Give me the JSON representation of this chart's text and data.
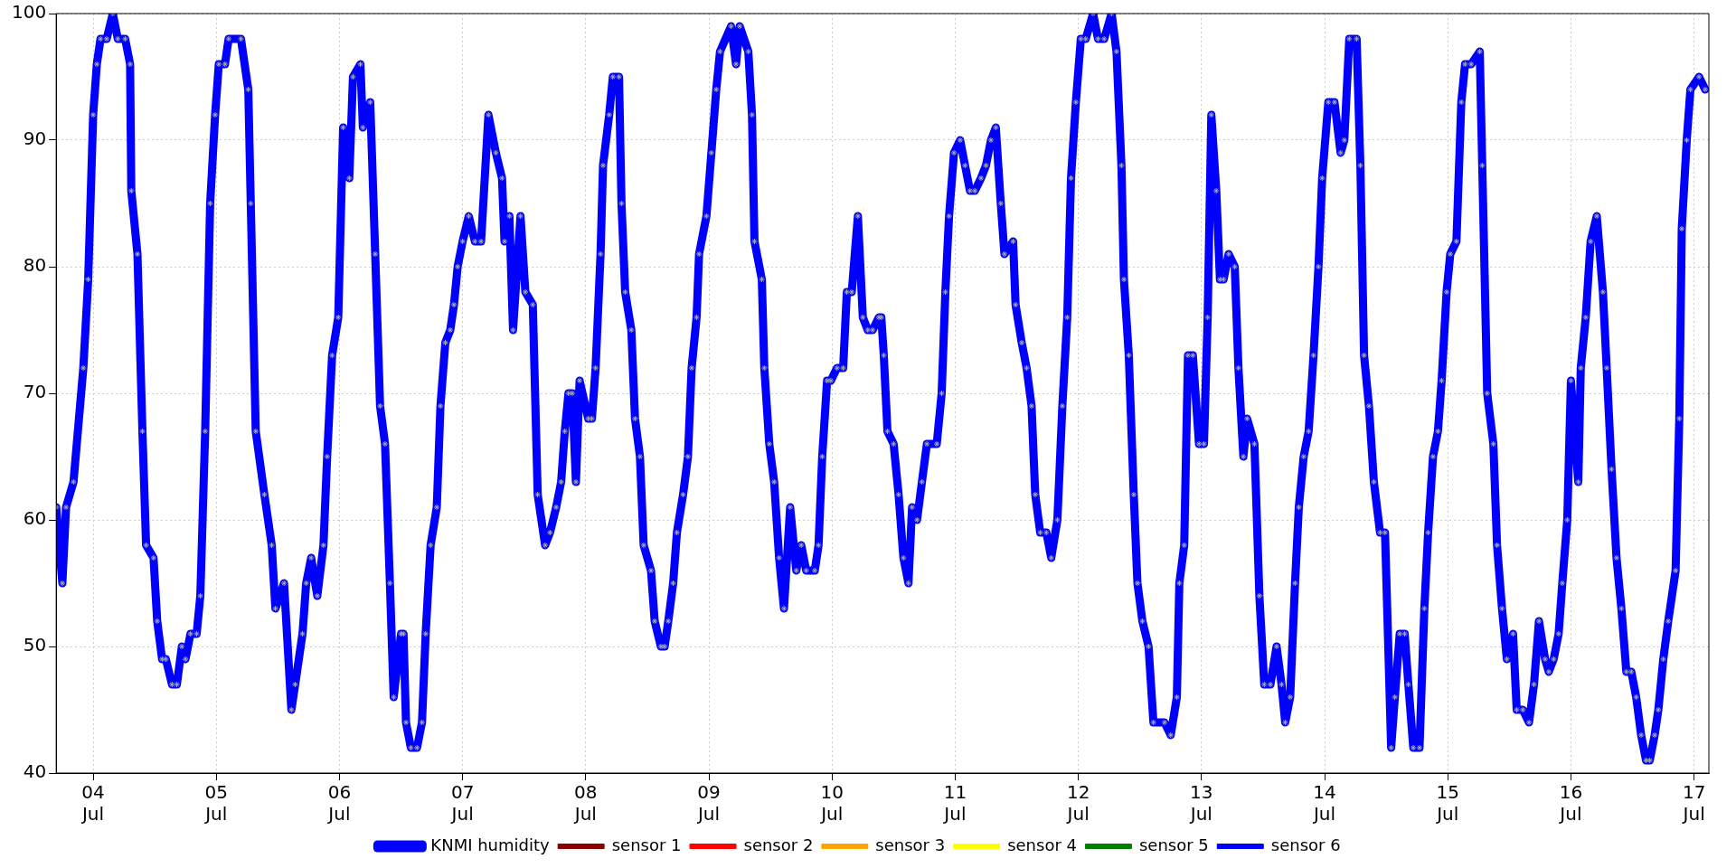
{
  "chart_data": {
    "type": "line",
    "xlim": [
      "--07-03T16:48",
      "--07-17T02:53"
    ],
    "ylim": [
      40,
      100
    ],
    "xticks": [
      {
        "value": "--07-04",
        "label": "04\nJul"
      },
      {
        "value": "--07-05",
        "label": "05\nJul"
      },
      {
        "value": "--07-06",
        "label": "06\nJul"
      },
      {
        "value": "--07-07",
        "label": "07\nJul"
      },
      {
        "value": "--07-08",
        "label": "08\nJul"
      },
      {
        "value": "--07-09",
        "label": "09\nJul"
      },
      {
        "value": "--07-10",
        "label": "10\nJul"
      },
      {
        "value": "--07-11",
        "label": "11\nJul"
      },
      {
        "value": "--07-12",
        "label": "12\nJul"
      },
      {
        "value": "--07-13",
        "label": "13\nJul"
      },
      {
        "value": "--07-14",
        "label": "14\nJul"
      },
      {
        "value": "--07-15",
        "label": "15\nJul"
      },
      {
        "value": "--07-16",
        "label": "16\nJul"
      },
      {
        "value": "--07-17",
        "label": "17\nJul"
      }
    ],
    "yticks": [
      40,
      50,
      60,
      70,
      80,
      90,
      100
    ],
    "grid": true,
    "legend": "bottom",
    "marker": "cross",
    "line_style": "solid",
    "series": [
      {
        "name": "KNMI humidity",
        "color": "#0000ff",
        "x": [
          "--07-03T16:48",
          "--07-03T18:00",
          "--07-03T18:43",
          "--07-03T20:10",
          "--07-03T22:05",
          "--07-03T23:02",
          "--07-04T00:00",
          "--07-04T00:43",
          "--07-04T01:26",
          "--07-04T02:38",
          "--07-04T03:50",
          "--07-04T04:48",
          "--07-04T06:14",
          "--07-04T07:12",
          "--07-04T07:26",
          "--07-04T08:38",
          "--07-04T09:36",
          "--07-04T10:19",
          "--07-04T11:46",
          "--07-04T12:29",
          "--07-04T13:26",
          "--07-04T14:10",
          "--07-04T15:22",
          "--07-04T16:19",
          "--07-04T17:17",
          "--07-04T18:00",
          "--07-04T18:58",
          "--07-04T20:10",
          "--07-04T20:53",
          "--07-04T21:50",
          "--07-04T22:48",
          "--07-04T23:46",
          "--07-05T00:29",
          "--07-05T01:41",
          "--07-05T02:24",
          "--07-05T04:48",
          "--07-05T06:14",
          "--07-05T06:43",
          "--07-05T07:41",
          "--07-05T09:22",
          "--07-05T10:48",
          "--07-05T11:31",
          "--07-05T13:12",
          "--07-05T14:38",
          "--07-05T15:22",
          "--07-05T16:48",
          "--07-05T17:31",
          "--07-05T18:29",
          "--07-05T19:41",
          "--07-05T20:53",
          "--07-05T21:36",
          "--07-05T22:34",
          "--07-05T23:46",
          "--07-06T00:43",
          "--07-06T01:55",
          "--07-06T02:38",
          "--07-06T04:05",
          "--07-06T04:34",
          "--07-06T06:00",
          "--07-06T06:58",
          "--07-06T07:55",
          "--07-06T08:53",
          "--07-06T09:50",
          "--07-06T10:34",
          "--07-06T12:00",
          "--07-06T12:29",
          "--07-06T12:58",
          "--07-06T13:55",
          "--07-06T15:07",
          "--07-06T16:05",
          "--07-06T16:48",
          "--07-06T17:46",
          "--07-06T18:58",
          "--07-06T19:41",
          "--07-06T20:38",
          "--07-06T21:36",
          "--07-06T22:19",
          "--07-06T23:02",
          "--07-07T00:00",
          "--07-07T01:12",
          "--07-07T02:24",
          "--07-07T03:36",
          "--07-07T05:02",
          "--07-07T06:29",
          "--07-07T07:41",
          "--07-07T08:10",
          "--07-07T09:07",
          "--07-07T09:50",
          "--07-07T11:17",
          "--07-07T12:14",
          "--07-07T13:41",
          "--07-07T14:38",
          "--07-07T16:05",
          "--07-07T17:02",
          "--07-07T18:14",
          "--07-07T19:12",
          "--07-07T19:55",
          "--07-07T20:38",
          "--07-07T21:22",
          "--07-07T22:05",
          "--07-07T22:48",
          "--07-08T00:29",
          "--07-08T01:12",
          "--07-08T01:55",
          "--07-08T02:53",
          "--07-08T03:22",
          "--07-08T04:34",
          "--07-08T05:17",
          "--07-08T06:29",
          "--07-08T06:58",
          "--07-08T07:41",
          "--07-08T08:53",
          "--07-08T09:36",
          "--07-08T10:34",
          "--07-08T11:17",
          "--07-08T12:43",
          "--07-08T13:26",
          "--07-08T14:38",
          "--07-08T15:22",
          "--07-08T16:05",
          "--07-08T17:02",
          "--07-08T17:46",
          "--07-08T18:58",
          "--07-08T19:55",
          "--07-08T20:38",
          "--07-08T21:36",
          "--07-08T22:05",
          "--07-08T23:31",
          "--07-09T00:29",
          "--07-09T01:26",
          "--07-09T02:10",
          "--07-09T04:19",
          "--07-09T05:17",
          "--07-09T06:00",
          "--07-09T07:41",
          "--07-09T08:24",
          "--07-09T08:53",
          "--07-09T10:19",
          "--07-09T10:48",
          "--07-09T11:46",
          "--07-09T12:43",
          "--07-09T13:41",
          "--07-09T14:38",
          "--07-09T15:50",
          "--07-09T17:02",
          "--07-09T18:00",
          "--07-09T18:58",
          "--07-09T20:38",
          "--07-09T21:22",
          "--07-09T22:05",
          "--07-09T23:02",
          "--07-09T23:46",
          "--07-10T00:58",
          "--07-10T02:10",
          "--07-10T02:53",
          "--07-10T03:50",
          "--07-10T05:02",
          "--07-10T06:00",
          "--07-10T06:58",
          "--07-10T07:55",
          "--07-10T09:07",
          "--07-10T09:36",
          "--07-10T10:05",
          "--07-10T10:48",
          "--07-10T12:00",
          "--07-10T12:58",
          "--07-10T13:55",
          "--07-10T14:53",
          "--07-10T15:36",
          "--07-10T16:34",
          "--07-10T17:31",
          "--07-10T18:29",
          "--07-10T20:24",
          "--07-10T21:22",
          "--07-10T22:05",
          "--07-10T22:48",
          "--07-10T23:46",
          "--07-11T00:58",
          "--07-11T01:55",
          "--07-11T02:53",
          "--07-11T03:50",
          "--07-11T05:02",
          "--07-11T06:00",
          "--07-11T06:58",
          "--07-11T07:55",
          "--07-11T08:53",
          "--07-11T09:36",
          "--07-11T11:17",
          "--07-11T11:46",
          "--07-11T12:58",
          "--07-11T13:55",
          "--07-11T14:53",
          "--07-11T15:36",
          "--07-11T16:34",
          "--07-11T17:46",
          "--07-11T18:43",
          "--07-11T19:55",
          "--07-11T20:53",
          "--07-11T21:50",
          "--07-11T22:34",
          "--07-11T23:31",
          "--07-12T00:29",
          "--07-12T01:26",
          "--07-12T02:53",
          "--07-12T03:50",
          "--07-12T05:02",
          "--07-12T06:29",
          "--07-12T07:26",
          "--07-12T08:24",
          "--07-12T08:53",
          "--07-12T09:50",
          "--07-12T10:48",
          "--07-12T11:31",
          "--07-12T12:29",
          "--07-12T13:41",
          "--07-12T14:38",
          "--07-12T16:48",
          "--07-12T18:00",
          "--07-12T19:12",
          "--07-12T19:41",
          "--07-12T20:38",
          "--07-12T21:22",
          "--07-12T22:19",
          "--07-12T23:31",
          "--07-13T00:29",
          "--07-13T01:12",
          "--07-13T01:55",
          "--07-13T02:53",
          "--07-13T03:36",
          "--07-13T04:19",
          "--07-13T05:17",
          "--07-13T06:29",
          "--07-13T07:12",
          "--07-13T08:10",
          "--07-13T08:53",
          "--07-13T10:19",
          "--07-13T11:17",
          "--07-13T12:14",
          "--07-13T13:26",
          "--07-13T14:38",
          "--07-13T15:36",
          "--07-13T16:19",
          "--07-13T17:17",
          "--07-13T18:14",
          "--07-13T18:58",
          "--07-13T19:55",
          "--07-13T20:53",
          "--07-13T21:50",
          "--07-13T22:48",
          "--07-13T23:31",
          "--07-14T00:43",
          "--07-14T01:55",
          "--07-14T03:07",
          "--07-14T03:50",
          "--07-14T04:48",
          "--07-14T06:14",
          "--07-14T06:58",
          "--07-14T07:41",
          "--07-14T08:38",
          "--07-14T09:36",
          "--07-14T10:48",
          "--07-14T11:46",
          "--07-14T12:58",
          "--07-14T13:41",
          "--07-14T14:38",
          "--07-14T15:36",
          "--07-14T16:19",
          "--07-14T17:17",
          "--07-14T18:29",
          "--07-14T19:26",
          "--07-14T20:10",
          "--07-14T21:07",
          "--07-14T22:05",
          "--07-14T22:48",
          "--07-14T23:46",
          "--07-15T00:29",
          "--07-15T01:41",
          "--07-15T02:38",
          "--07-15T03:22",
          "--07-15T04:34",
          "--07-15T06:14",
          "--07-15T06:43",
          "--07-15T07:41",
          "--07-15T08:53",
          "--07-15T09:36",
          "--07-15T10:34",
          "--07-15T11:31",
          "--07-15T12:43",
          "--07-15T13:26",
          "--07-15T14:38",
          "--07-15T15:50",
          "--07-15T16:48",
          "--07-15T17:46",
          "--07-15T18:58",
          "--07-15T19:41",
          "--07-15T20:38",
          "--07-15T21:36",
          "--07-15T22:19",
          "--07-15T23:17",
          "--07-16T00:00",
          "--07-16T01:26",
          "--07-16T01:55",
          "--07-16T02:53",
          "--07-16T03:50",
          "--07-16T05:02",
          "--07-16T06:14",
          "--07-16T06:58",
          "--07-16T07:55",
          "--07-16T08:53",
          "--07-16T09:50",
          "--07-16T10:48",
          "--07-16T11:46",
          "--07-16T12:43",
          "--07-16T13:41",
          "--07-16T14:38",
          "--07-16T15:22",
          "--07-16T16:19",
          "--07-16T17:02",
          "--07-16T18:00",
          "--07-16T18:58",
          "--07-16T20:24",
          "--07-16T21:07",
          "--07-16T21:36",
          "--07-16T22:34",
          "--07-16T23:17",
          "--07-17T00:58",
          "--07-17T02:10"
        ],
        "values": [
          61,
          55,
          61,
          63,
          72,
          79,
          92,
          96,
          98,
          98,
          100,
          98,
          98,
          96,
          86,
          81,
          67,
          58,
          57,
          52,
          49,
          49,
          47,
          47,
          50,
          49,
          51,
          51,
          54,
          67,
          85,
          92,
          96,
          96,
          98,
          98,
          94,
          85,
          67,
          62,
          58,
          53,
          55,
          45,
          47,
          51,
          55,
          57,
          54,
          58,
          65,
          73,
          76,
          91,
          87,
          95,
          96,
          91,
          93,
          81,
          69,
          66,
          55,
          46,
          51,
          51,
          44,
          42,
          42,
          44,
          51,
          58,
          61,
          69,
          74,
          75,
          77,
          80,
          82,
          84,
          82,
          82,
          92,
          89,
          87,
          82,
          84,
          75,
          84,
          78,
          77,
          62,
          58,
          59,
          61,
          63,
          67,
          70,
          70,
          63,
          71,
          68,
          68,
          72,
          81,
          88,
          92,
          95,
          95,
          85,
          78,
          75,
          68,
          65,
          58,
          56,
          52,
          50,
          50,
          52,
          55,
          59,
          62,
          65,
          72,
          76,
          81,
          84,
          89,
          94,
          97,
          99,
          96,
          99,
          97,
          92,
          82,
          79,
          72,
          66,
          63,
          57,
          53,
          61,
          56,
          58,
          56,
          56,
          58,
          65,
          71,
          71,
          72,
          72,
          78,
          78,
          84,
          76,
          75,
          75,
          76,
          76,
          73,
          67,
          66,
          62,
          57,
          55,
          61,
          60,
          63,
          66,
          66,
          70,
          78,
          84,
          89,
          90,
          88,
          86,
          86,
          87,
          88,
          90,
          91,
          85,
          81,
          82,
          77,
          74,
          72,
          69,
          62,
          59,
          59,
          57,
          60,
          69,
          76,
          87,
          93,
          98,
          98,
          100,
          98,
          98,
          100,
          97,
          88,
          79,
          73,
          62,
          55,
          52,
          50,
          44,
          44,
          43,
          46,
          55,
          58,
          73,
          73,
          66,
          66,
          76,
          92,
          86,
          79,
          79,
          81,
          80,
          72,
          65,
          68,
          66,
          54,
          47,
          47,
          50,
          47,
          44,
          46,
          55,
          61,
          65,
          67,
          73,
          80,
          87,
          93,
          93,
          89,
          90,
          98,
          98,
          88,
          73,
          69,
          63,
          59,
          59,
          42,
          46,
          51,
          51,
          47,
          42,
          42,
          53,
          59,
          65,
          67,
          71,
          78,
          81,
          82,
          93,
          96,
          96,
          97,
          88,
          70,
          66,
          58,
          53,
          49,
          51,
          45,
          45,
          44,
          47,
          52,
          49,
          48,
          49,
          51,
          55,
          60,
          71,
          63,
          72,
          76,
          82,
          84,
          78,
          72,
          64,
          57,
          53,
          48,
          48,
          46,
          43,
          41,
          41,
          43,
          45,
          49,
          52,
          56,
          68,
          83,
          90,
          94,
          95,
          94
        ]
      },
      {
        "name": "sensor 1",
        "color": "#8b0000"
      },
      {
        "name": "sensor 2",
        "color": "#ff0000"
      },
      {
        "name": "sensor 3",
        "color": "#ffa500"
      },
      {
        "name": "sensor 4",
        "color": "#ffff00"
      },
      {
        "name": "sensor 5",
        "color": "#008000"
      },
      {
        "name": "sensor 6",
        "color": "#0000ff"
      }
    ]
  }
}
